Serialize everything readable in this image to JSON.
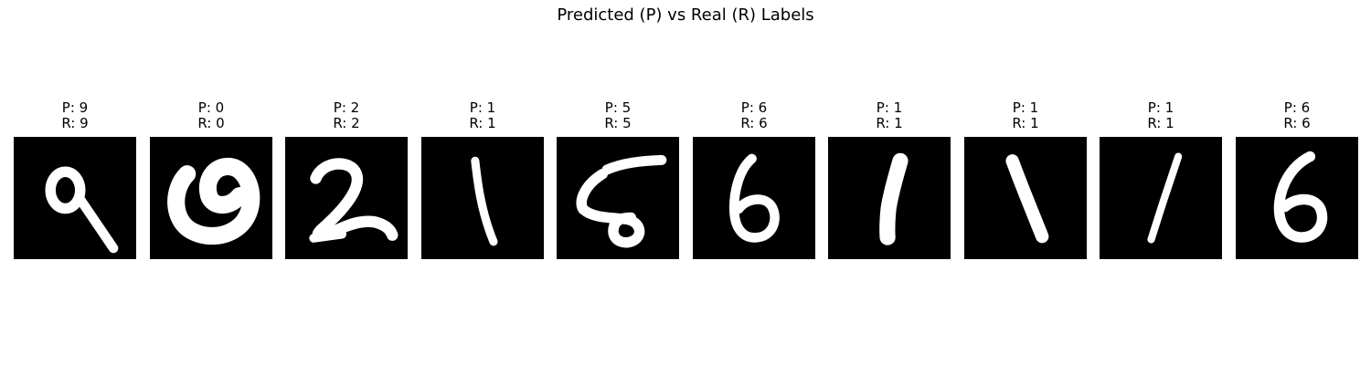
{
  "title": "Predicted (P) vs Real (R) Labels",
  "panels": [
    {
      "predicted": "P: 9",
      "real": "R: 9",
      "digit": "9"
    },
    {
      "predicted": "P: 0",
      "real": "R: 0",
      "digit": "0"
    },
    {
      "predicted": "P: 2",
      "real": "R: 2",
      "digit": "2"
    },
    {
      "predicted": "P: 1",
      "real": "R: 1",
      "digit": "1"
    },
    {
      "predicted": "P: 5",
      "real": "R: 5",
      "digit": "5"
    },
    {
      "predicted": "P: 6",
      "real": "R: 6",
      "digit": "6"
    },
    {
      "predicted": "P: 1",
      "real": "R: 1",
      "digit": "1"
    },
    {
      "predicted": "P: 1",
      "real": "R: 1",
      "digit": "1"
    },
    {
      "predicted": "P: 1",
      "real": "R: 1",
      "digit": "1"
    },
    {
      "predicted": "P: 6",
      "real": "R: 6",
      "digit": "6"
    }
  ],
  "colors": {
    "image_background": "#000000",
    "stroke": "#ffffff",
    "text": "#000000"
  }
}
